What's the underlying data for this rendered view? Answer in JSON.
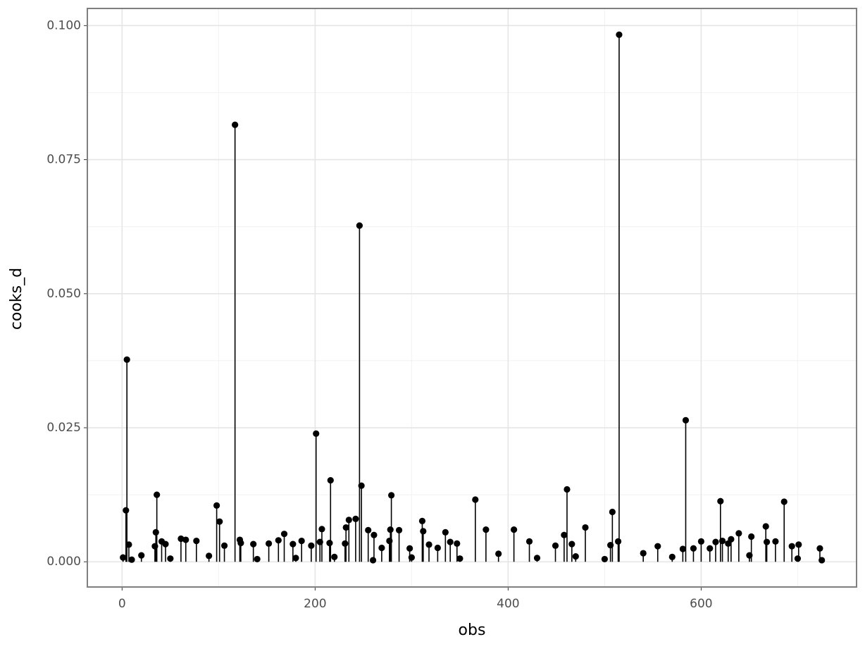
{
  "chart_data": {
    "type": "stem",
    "x_label": "obs",
    "y_label": "cooks_d",
    "xlim": [
      -36,
      761
    ],
    "ylim": [
      -0.0047,
      0.1032
    ],
    "xticks": [
      0,
      200,
      400,
      600
    ],
    "yticks": [
      {
        "value": 0,
        "label": "0.000"
      },
      {
        "value": 0.025,
        "label": "0.025"
      },
      {
        "value": 0.05,
        "label": "0.050"
      },
      {
        "value": 0.075,
        "label": "0.075"
      },
      {
        "value": 0.1,
        "label": "0.100"
      }
    ],
    "grid": true,
    "series": [
      {
        "color": "#000000",
        "x": [
          1,
          4,
          5,
          7,
          10,
          20,
          34,
          35,
          36,
          41,
          45,
          50,
          61,
          66,
          77,
          90,
          98,
          101,
          106,
          117,
          122,
          123,
          136,
          140,
          152,
          162,
          168,
          177,
          180,
          186,
          196,
          201,
          205,
          207,
          215,
          216,
          220,
          231,
          232,
          235,
          242,
          246,
          248,
          255,
          260,
          261,
          269,
          277,
          278,
          279,
          287,
          298,
          300,
          311,
          312,
          318,
          327,
          335,
          340,
          347,
          350,
          366,
          377,
          390,
          406,
          422,
          430,
          449,
          458,
          461,
          466,
          470,
          480,
          500,
          506,
          508,
          514,
          515,
          540,
          555,
          570,
          581,
          584,
          592,
          600,
          609,
          615,
          620,
          622,
          628,
          631,
          639,
          650,
          652,
          667,
          668,
          677,
          686,
          694,
          700,
          701,
          723,
          725
        ],
        "values": [
          0.0008,
          0.0096,
          0.0377,
          0.0032,
          0.0004,
          0.0012,
          0.0029,
          0.0055,
          0.0125,
          0.0038,
          0.0033,
          0.0006,
          0.0043,
          0.0041,
          0.0039,
          0.0011,
          0.0105,
          0.0075,
          0.003,
          0.0815,
          0.0041,
          0.0035,
          0.0033,
          0.0005,
          0.0034,
          0.004,
          0.0052,
          0.0033,
          0.0007,
          0.0039,
          0.003,
          0.0239,
          0.0037,
          0.0061,
          0.0035,
          0.0152,
          0.0009,
          0.0034,
          0.0064,
          0.0078,
          0.008,
          0.0627,
          0.0142,
          0.0059,
          0.0003,
          0.005,
          0.0026,
          0.0039,
          0.006,
          0.0124,
          0.0059,
          0.0025,
          0.0008,
          0.0076,
          0.0057,
          0.0032,
          0.0026,
          0.0055,
          0.0037,
          0.0034,
          0.0006,
          0.0116,
          0.006,
          0.0015,
          0.006,
          0.0038,
          0.0007,
          0.003,
          0.005,
          0.0135,
          0.0033,
          0.001,
          0.0064,
          0.0005,
          0.0031,
          0.0093,
          0.0038,
          0.0983,
          0.0016,
          0.0029,
          0.0009,
          0.0024,
          0.0264,
          0.0025,
          0.0038,
          0.0025,
          0.0037,
          0.0113,
          0.0039,
          0.0034,
          0.0042,
          0.0053,
          0.0012,
          0.0047,
          0.0066,
          0.0037,
          0.0038,
          0.0112,
          0.0029,
          0.0006,
          0.0032,
          0.0025,
          0.0003
        ]
      }
    ]
  }
}
